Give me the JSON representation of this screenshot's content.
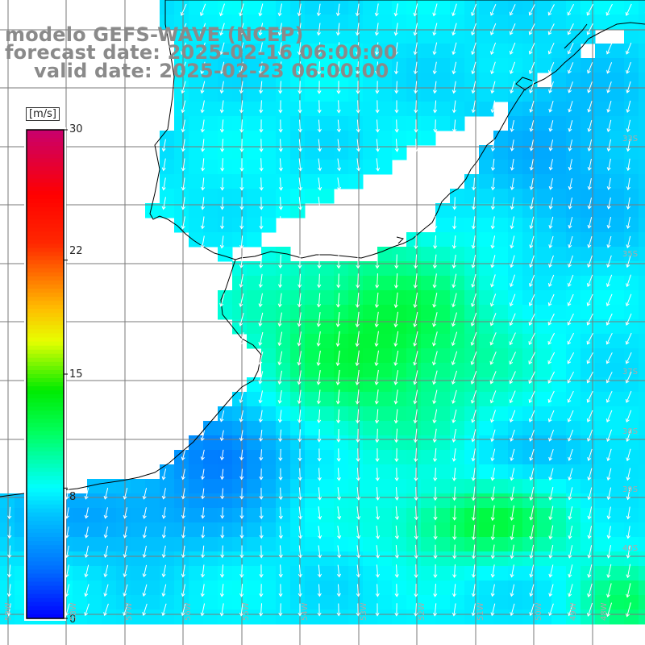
{
  "titles": {
    "model": "modelo GEFS-WAVE (NCEP)",
    "forecast": "forecast date: 2025-02-16 06:00:00",
    "valid": "valid date: 2025-02-23 06:00:00"
  },
  "colorbar": {
    "unit": "[m/s]",
    "ticks": [
      "30",
      "22",
      "15",
      "8",
      "0"
    ],
    "tick_values": [
      30,
      22,
      15,
      8,
      0
    ],
    "min": 0,
    "max": 30
  },
  "lat_labels": [
    "33S",
    "35S",
    "37S",
    "38S",
    "39S",
    "40S"
  ],
  "lon_labels": [
    "59W",
    "58W",
    "57W",
    "56W",
    "55W",
    "54W",
    "53W",
    "52W",
    "51W",
    "50W",
    "49W",
    "48W"
  ],
  "colors": {
    "land": "#ffffff",
    "coast": "#000000",
    "grid": "#7a7a7a",
    "arrow": "#ffffff",
    "text_title": "#8a8a8a"
  },
  "field": {
    "variable": "wind speed",
    "unit": "m/s",
    "arrow_direction": "from north-northeast (pointing south-southwest)",
    "speed_range_visible": [
      4,
      14
    ]
  }
}
